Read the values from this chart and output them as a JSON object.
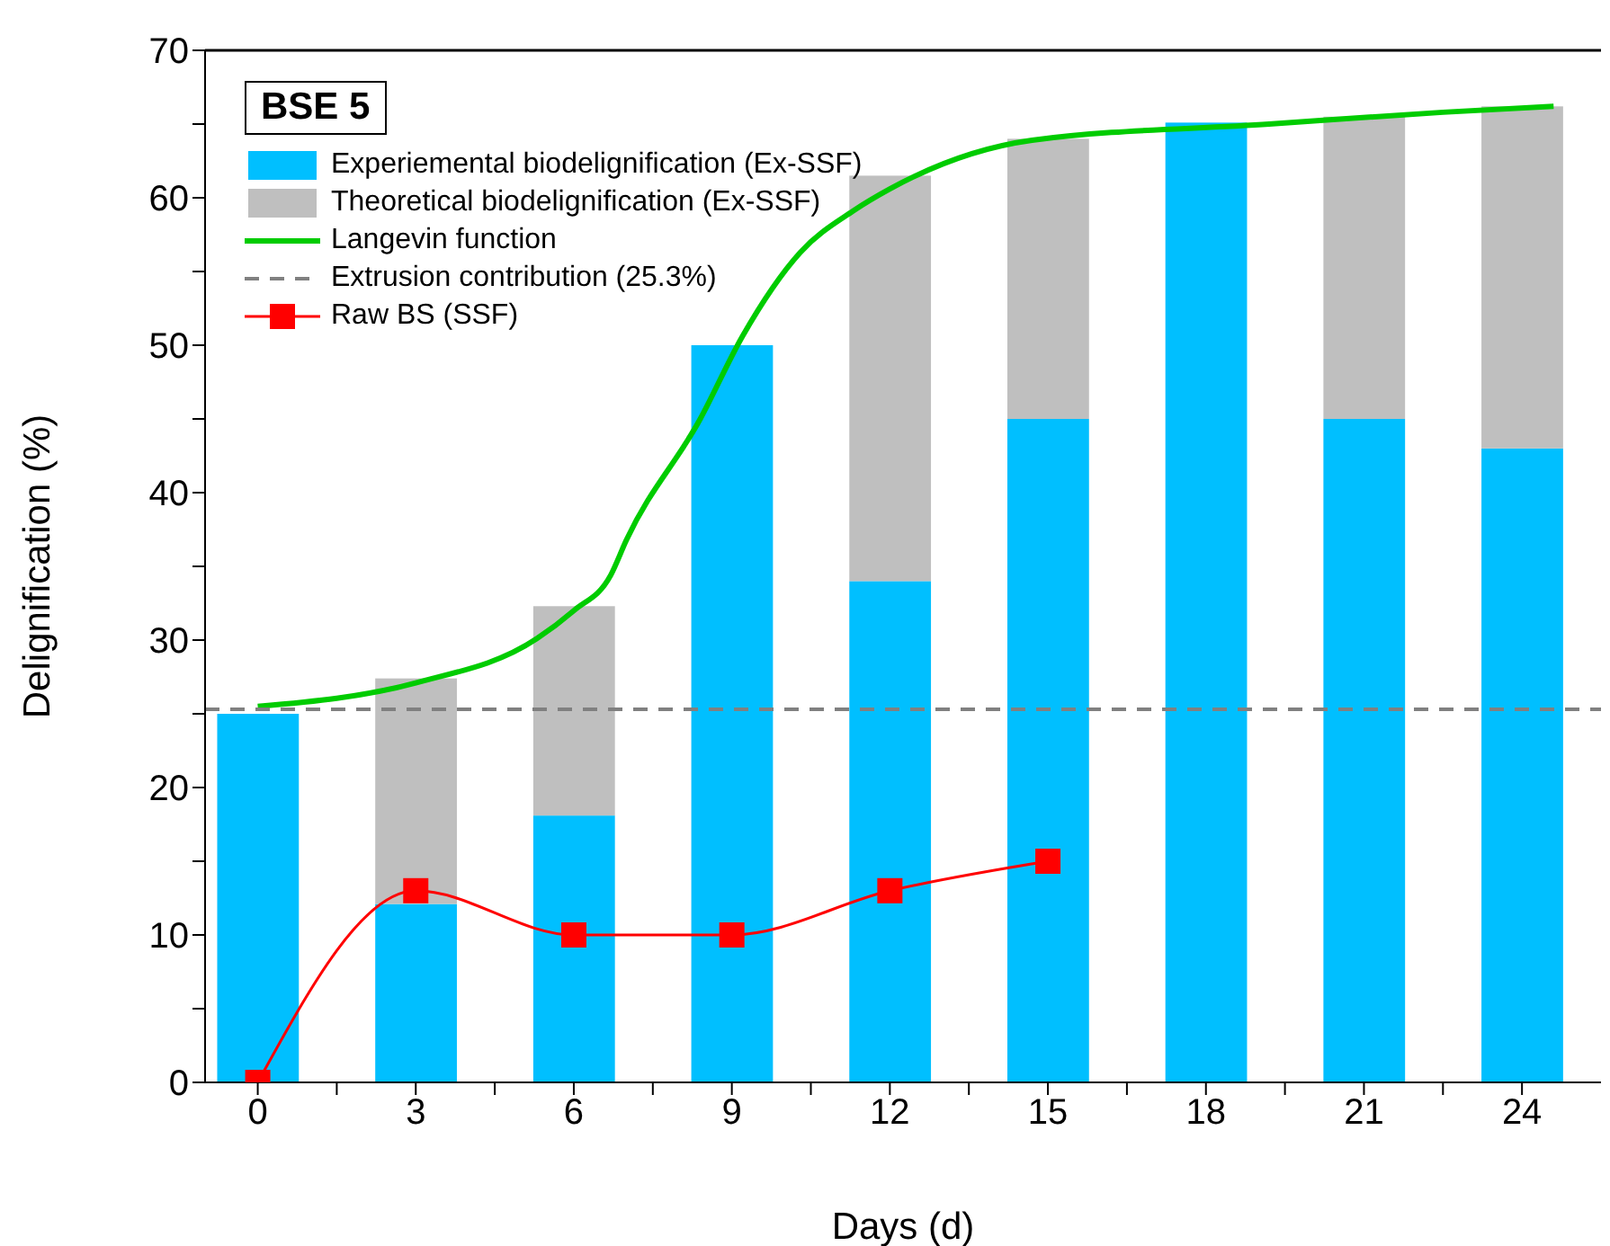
{
  "chart_data": {
    "type": "bar",
    "stacked": true,
    "xlabel": "Days (d)",
    "ylabel": "Delignification (%)",
    "legend_title": "BSE 5",
    "x": [
      0,
      3,
      6,
      9,
      12,
      15,
      18,
      21,
      24
    ],
    "series": [
      {
        "name": "Experiemental biodelignification (Ex-SSF)",
        "color": "#00bfff",
        "values": [
          25,
          12.1,
          18.1,
          50,
          34,
          45,
          65.1,
          45,
          43
        ]
      },
      {
        "name": "Theoretical biodelignification (Ex-SSF)",
        "color": "#bfbfbf",
        "values": [
          null,
          15.3,
          14.2,
          null,
          27.5,
          19,
          null,
          20.5,
          23.2
        ]
      },
      {
        "name": "Langevin function",
        "type": "line",
        "color": "#00cc00",
        "marker": "none",
        "x": [
          0,
          3,
          5.3,
          6,
          6.7,
          7,
          8.4,
          9.2,
          10.3,
          11.3,
          12,
          14.7,
          19.2,
          22.5,
          24.6
        ],
        "values": [
          25.5,
          27.1,
          30.1,
          32,
          34.4,
          36.8,
          45,
          50.6,
          56.3,
          59.1,
          60.6,
          63.9,
          65,
          65.8,
          66.2
        ]
      },
      {
        "name": "Raw BS (SSF)",
        "type": "line",
        "color": "#ff0000",
        "marker": "square",
        "x": [
          0,
          3,
          6,
          9,
          12,
          15
        ],
        "values": [
          0,
          13,
          10,
          10,
          13,
          15
        ]
      }
    ],
    "ref_lines": [
      {
        "axis": "y",
        "value": 25.3,
        "label": "Extrusion contribution (25.3%)",
        "color": "#808080",
        "line_style": "dashed"
      }
    ],
    "xlim": [
      -1,
      25.5
    ],
    "xticks": [
      0,
      {
        "value": 1.5,
        "label": null
      },
      3,
      {
        "value": 4.5,
        "label": null
      },
      6,
      {
        "value": 7.5,
        "label": null
      },
      9,
      {
        "value": 10.5,
        "label": null
      },
      12,
      {
        "value": 13.5,
        "label": null
      },
      15,
      {
        "value": 16.5,
        "label": null
      },
      18,
      {
        "value": 19.5,
        "label": null
      },
      21,
      {
        "value": 22.5,
        "label": null
      },
      24
    ],
    "ylim": [
      0,
      70
    ],
    "yticks": [
      0,
      {
        "value": 5,
        "label": null
      },
      10,
      {
        "value": 15,
        "label": null
      },
      20,
      {
        "value": 25,
        "label": null
      },
      30,
      {
        "value": 35,
        "label": null
      },
      40,
      {
        "value": 45,
        "label": null
      },
      50,
      {
        "value": 55,
        "label": null
      },
      60,
      {
        "value": 65,
        "label": null
      },
      70
    ],
    "grid": false,
    "legend": "top left"
  }
}
